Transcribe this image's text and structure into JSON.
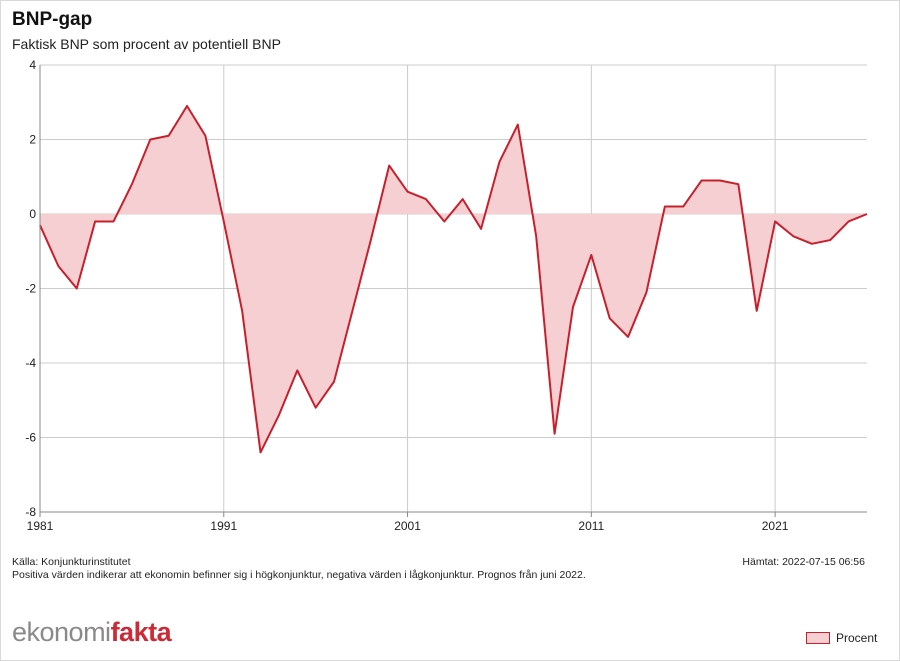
{
  "header": {
    "title": "BNP-gap",
    "subtitle": "Faktisk BNP som procent av potentiell BNP"
  },
  "footer": {
    "source": "Källa: Konjunkturinstitutet",
    "note": "Positiva värden indikerar att ekonomin befinner sig i högkonjunktur, negativa värden i lågkonjunktur. Prognos från juni 2022.",
    "retrieved": "Hämtat: 2022-07-15 06:56",
    "logo_part1": "ekonomi",
    "logo_part2": "fakta"
  },
  "legend": {
    "label": "Procent"
  },
  "colors": {
    "line": "#c7202c",
    "fill": "#f6cfd2",
    "grid": "#cccccc",
    "brand_red": "#cc2a36",
    "brand_gray": "#8a8a8a"
  },
  "chart_data": {
    "type": "area",
    "title": "BNP-gap",
    "subtitle": "Faktisk BNP som procent av potentiell BNP",
    "xlabel": "",
    "ylabel": "",
    "xlim": [
      1981,
      2026
    ],
    "ylim": [
      -8,
      4
    ],
    "yticks": [
      4,
      2,
      0,
      -2,
      -4,
      -6,
      -8
    ],
    "xticks": [
      1981,
      1991,
      2001,
      2011,
      2021
    ],
    "grid": true,
    "legend_position": "bottom-right",
    "series": [
      {
        "name": "Procent",
        "x": [
          1981,
          1982,
          1983,
          1984,
          1985,
          1986,
          1987,
          1988,
          1989,
          1990,
          1991,
          1992,
          1993,
          1994,
          1995,
          1996,
          1997,
          1998,
          1999,
          2000,
          2001,
          2002,
          2003,
          2004,
          2005,
          2006,
          2007,
          2008,
          2009,
          2010,
          2011,
          2012,
          2013,
          2014,
          2015,
          2016,
          2017,
          2018,
          2019,
          2020,
          2021,
          2022,
          2023,
          2024,
          2025,
          2026
        ],
        "values": [
          -0.3,
          -1.4,
          -2.0,
          -0.2,
          -0.2,
          0.8,
          2.0,
          2.1,
          2.9,
          2.1,
          -0.2,
          -2.6,
          -6.4,
          -5.4,
          -4.2,
          -5.2,
          -4.5,
          -2.6,
          -0.7,
          1.3,
          0.6,
          0.4,
          -0.2,
          0.4,
          -0.4,
          1.4,
          2.4,
          -0.6,
          -5.9,
          -2.5,
          -1.1,
          -2.8,
          -3.3,
          -2.1,
          0.2,
          0.2,
          0.9,
          0.9,
          0.8,
          -2.6,
          -0.2,
          -0.6,
          -0.8,
          -0.7,
          -0.2,
          0.0
        ]
      }
    ]
  }
}
